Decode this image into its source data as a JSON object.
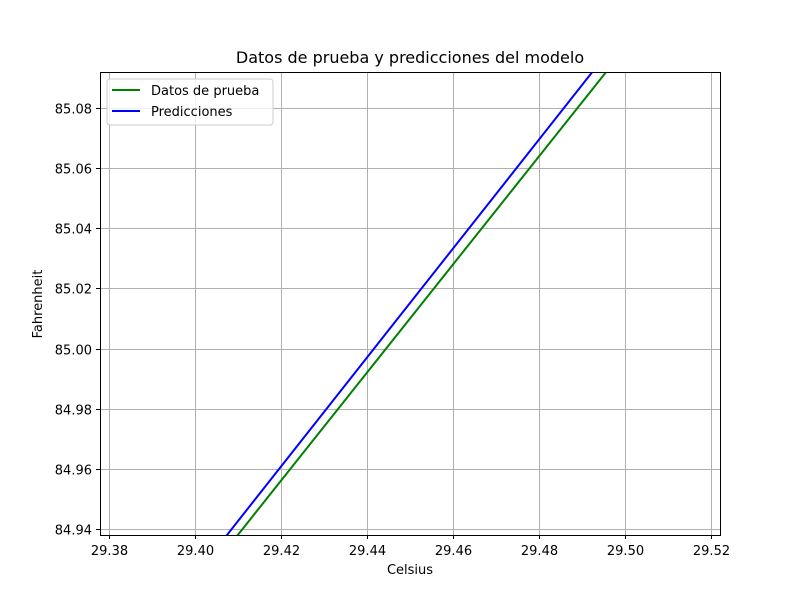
{
  "chart_data": {
    "type": "line",
    "title": "Datos de prueba y predicciones del modelo",
    "xlabel": "Celsius",
    "ylabel": "Fahrenheit",
    "xlim": [
      29.378,
      29.522
    ],
    "ylim": [
      84.938,
      85.092
    ],
    "xticks": [
      29.38,
      29.4,
      29.42,
      29.44,
      29.46,
      29.48,
      29.5,
      29.52
    ],
    "xtick_labels": [
      "29.38",
      "29.40",
      "29.42",
      "29.44",
      "29.46",
      "29.48",
      "29.50",
      "29.52"
    ],
    "yticks": [
      84.94,
      84.96,
      84.98,
      85.0,
      85.02,
      85.04,
      85.06,
      85.08
    ],
    "ytick_labels": [
      "84.94",
      "84.96",
      "84.98",
      "85.00",
      "85.02",
      "85.04",
      "85.06",
      "85.08"
    ],
    "grid": true,
    "legend_position": "top-left",
    "series": [
      {
        "name": "Datos de prueba",
        "color": "#008000",
        "x": [
          29.4,
          29.52
        ],
        "y": [
          84.92,
          85.136
        ]
      },
      {
        "name": "Predicciones",
        "color": "#0000ff",
        "x": [
          29.4,
          29.52
        ],
        "y": [
          84.9244,
          85.1422
        ]
      }
    ]
  }
}
